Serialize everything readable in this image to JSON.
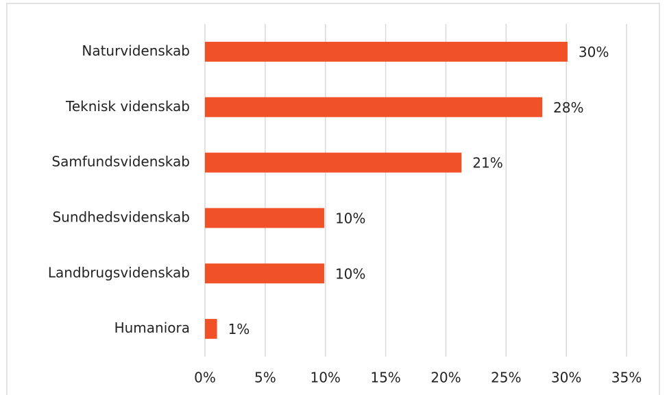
{
  "chart_data": {
    "type": "hbar",
    "categories": [
      "Naturvidenskab",
      "Teknisk videnskab",
      "Samfundsvidenskab",
      "Sundhedsvidenskab",
      "Landbrugsvidenskab",
      "Humaniora"
    ],
    "values": [
      30.1,
      28,
      21.3,
      9.9,
      9.9,
      1.0
    ],
    "value_labels": [
      "30%",
      "28%",
      "21%",
      "10%",
      "10%",
      "1%"
    ],
    "color": "#f05127",
    "xlim": [
      0,
      35
    ],
    "xticks": [
      {
        "value": 0,
        "label": "0%"
      },
      {
        "value": 5,
        "label": "5%"
      },
      {
        "value": 10,
        "label": "10%"
      },
      {
        "value": 15,
        "label": "15%"
      },
      {
        "value": 20,
        "label": "20%"
      },
      {
        "value": 25,
        "label": "25%"
      },
      {
        "value": 30,
        "label": "30%"
      },
      {
        "value": 35,
        "label": "35%"
      }
    ],
    "grid": true
  }
}
